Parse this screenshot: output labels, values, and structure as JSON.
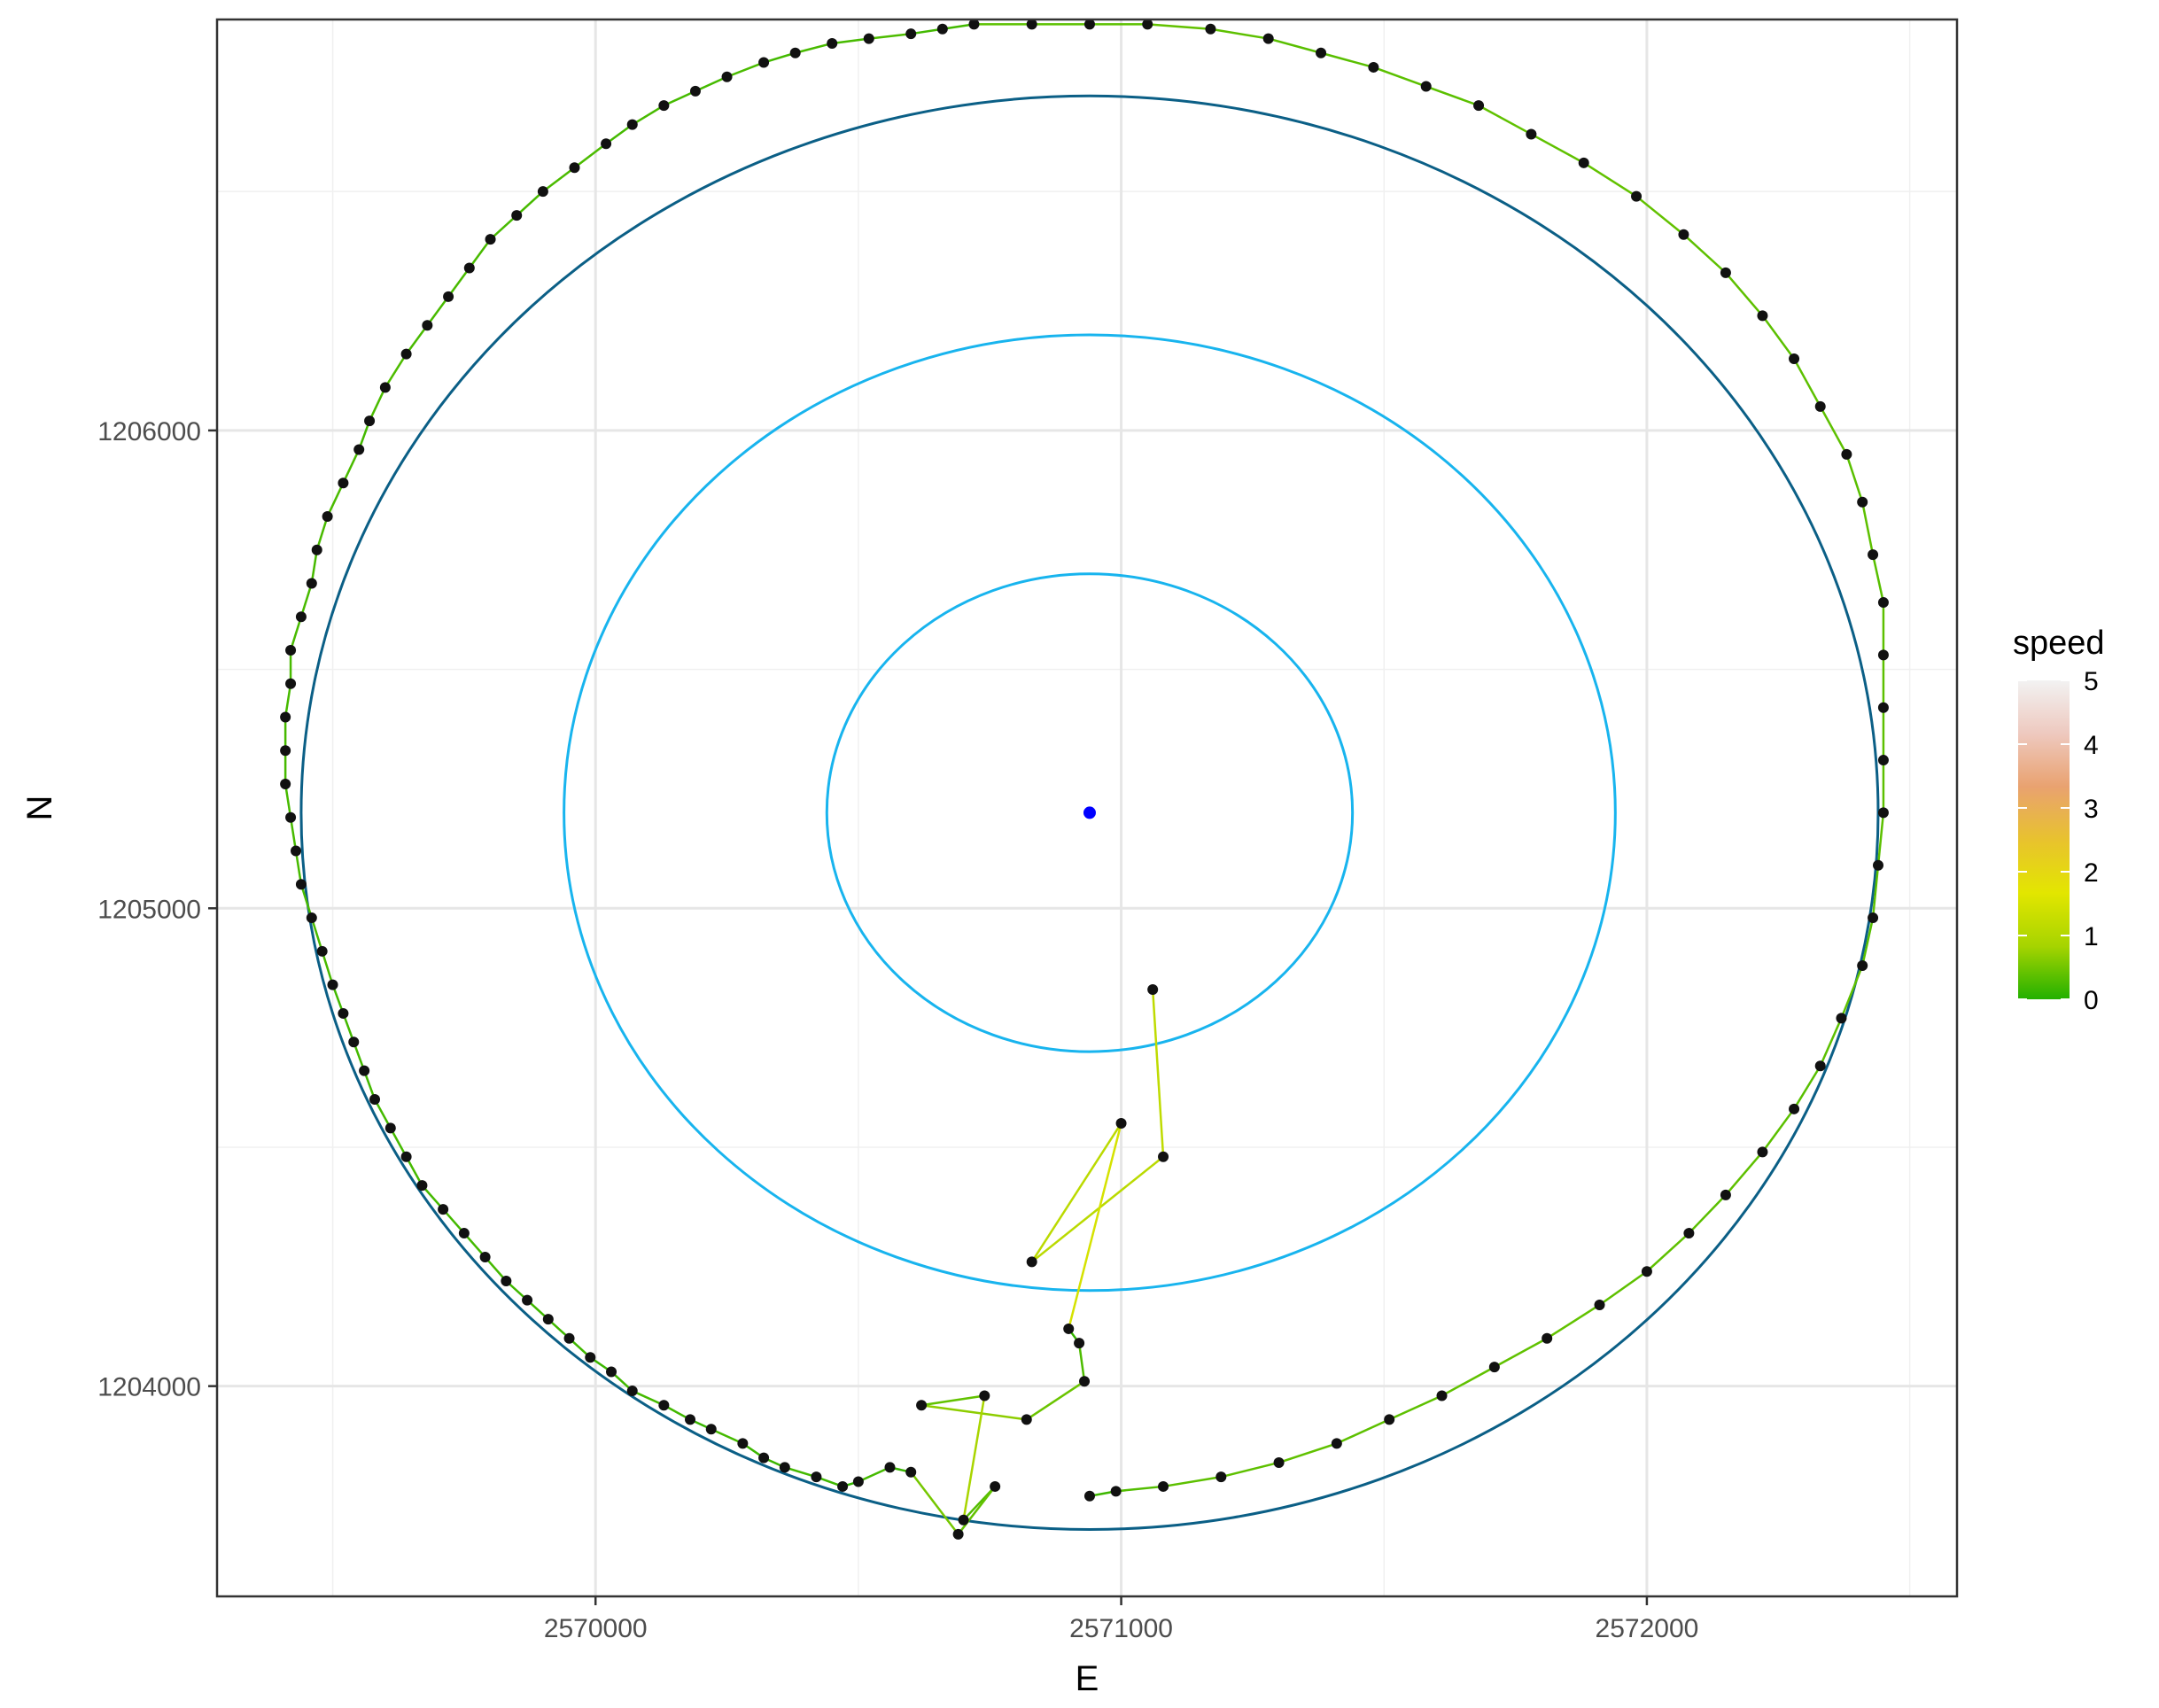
{
  "chart_data": {
    "type": "scatter",
    "title": "",
    "xlabel": "E",
    "ylabel": "N",
    "xlim": [
      2569280,
      2572590
    ],
    "ylim": [
      1203560,
      1206860
    ],
    "x_ticks": [
      2570000,
      2571000,
      2572000
    ],
    "y_ticks": [
      1204000,
      1205000,
      1206000
    ],
    "x_tick_labels": [
      "2570000",
      "2571000",
      "2572000"
    ],
    "y_tick_labels": [
      "1204000",
      "1205000",
      "1206000"
    ],
    "grid": true,
    "legend": {
      "title": "speed",
      "position": "right",
      "breaks": [
        0,
        1,
        2,
        3,
        4,
        5
      ],
      "labels": [
        "0",
        "1",
        "2",
        "3",
        "4",
        "5"
      ],
      "gradient_colors": [
        "#22b000",
        "#a6d400",
        "#e3e600",
        "#e8c22e",
        "#e9a270",
        "#eec9bf",
        "#f2f2f2"
      ]
    },
    "center": {
      "x": 2570940,
      "y": 1205200,
      "color": "#0000ff"
    },
    "rings": [
      {
        "radius": 500,
        "color": "#18b4ee"
      },
      {
        "radius": 1000,
        "color": "#18b4ee"
      },
      {
        "radius": 1500,
        "color": "#0b5f86"
      }
    ],
    "track_points": [
      [
        2571060,
        1204830
      ],
      [
        2571080,
        1204480
      ],
      [
        2570830,
        1204260
      ],
      [
        2571000,
        1204550
      ],
      [
        2570900,
        1204120
      ],
      [
        2570920,
        1204090
      ],
      [
        2570930,
        1204010
      ],
      [
        2570820,
        1203930
      ],
      [
        2570620,
        1203960
      ],
      [
        2570740,
        1203980
      ],
      [
        2570700,
        1203720
      ],
      [
        2570760,
        1203790
      ],
      [
        2570690,
        1203690
      ],
      [
        2570600,
        1203820
      ],
      [
        2570560,
        1203830
      ],
      [
        2570500,
        1203800
      ],
      [
        2570470,
        1203790
      ],
      [
        2570420,
        1203810
      ],
      [
        2570360,
        1203830
      ],
      [
        2570320,
        1203850
      ],
      [
        2570280,
        1203880
      ],
      [
        2570220,
        1203910
      ],
      [
        2570180,
        1203930
      ],
      [
        2570130,
        1203960
      ],
      [
        2570070,
        1203990
      ],
      [
        2570030,
        1204030
      ],
      [
        2569990,
        1204060
      ],
      [
        2569950,
        1204100
      ],
      [
        2569910,
        1204140
      ],
      [
        2569870,
        1204180
      ],
      [
        2569830,
        1204220
      ],
      [
        2569790,
        1204270
      ],
      [
        2569750,
        1204320
      ],
      [
        2569710,
        1204370
      ],
      [
        2569670,
        1204420
      ],
      [
        2569640,
        1204480
      ],
      [
        2569610,
        1204540
      ],
      [
        2569580,
        1204600
      ],
      [
        2569560,
        1204660
      ],
      [
        2569540,
        1204720
      ],
      [
        2569520,
        1204780
      ],
      [
        2569500,
        1204840
      ],
      [
        2569480,
        1204910
      ],
      [
        2569460,
        1204980
      ],
      [
        2569440,
        1205050
      ],
      [
        2569430,
        1205120
      ],
      [
        2569420,
        1205190
      ],
      [
        2569410,
        1205260
      ],
      [
        2569410,
        1205330
      ],
      [
        2569410,
        1205400
      ],
      [
        2569420,
        1205470
      ],
      [
        2569420,
        1205540
      ],
      [
        2569440,
        1205610
      ],
      [
        2569460,
        1205680
      ],
      [
        2569470,
        1205750
      ],
      [
        2569490,
        1205820
      ],
      [
        2569520,
        1205890
      ],
      [
        2569550,
        1205960
      ],
      [
        2569570,
        1206020
      ],
      [
        2569600,
        1206090
      ],
      [
        2569640,
        1206160
      ],
      [
        2569680,
        1206220
      ],
      [
        2569720,
        1206280
      ],
      [
        2569760,
        1206340
      ],
      [
        2569800,
        1206400
      ],
      [
        2569850,
        1206450
      ],
      [
        2569900,
        1206500
      ],
      [
        2569960,
        1206550
      ],
      [
        2570020,
        1206600
      ],
      [
        2570070,
        1206640
      ],
      [
        2570130,
        1206680
      ],
      [
        2570190,
        1206710
      ],
      [
        2570250,
        1206740
      ],
      [
        2570320,
        1206770
      ],
      [
        2570380,
        1206790
      ],
      [
        2570450,
        1206810
      ],
      [
        2570520,
        1206820
      ],
      [
        2570600,
        1206830
      ],
      [
        2570660,
        1206840
      ],
      [
        2570720,
        1206850
      ],
      [
        2570830,
        1206850
      ],
      [
        2570940,
        1206850
      ],
      [
        2571050,
        1206850
      ],
      [
        2571170,
        1206840
      ],
      [
        2571280,
        1206820
      ],
      [
        2571380,
        1206790
      ],
      [
        2571480,
        1206760
      ],
      [
        2571580,
        1206720
      ],
      [
        2571680,
        1206680
      ],
      [
        2571780,
        1206620
      ],
      [
        2571880,
        1206560
      ],
      [
        2571980,
        1206490
      ],
      [
        2572070,
        1206410
      ],
      [
        2572150,
        1206330
      ],
      [
        2572220,
        1206240
      ],
      [
        2572280,
        1206150
      ],
      [
        2572330,
        1206050
      ],
      [
        2572380,
        1205950
      ],
      [
        2572410,
        1205850
      ],
      [
        2572430,
        1205740
      ],
      [
        2572450,
        1205640
      ],
      [
        2572450,
        1205530
      ],
      [
        2572450,
        1205420
      ],
      [
        2572450,
        1205310
      ],
      [
        2572450,
        1205200
      ],
      [
        2572440,
        1205090
      ],
      [
        2572430,
        1204980
      ],
      [
        2572410,
        1204880
      ],
      [
        2572370,
        1204770
      ],
      [
        2572330,
        1204670
      ],
      [
        2572280,
        1204580
      ],
      [
        2572220,
        1204490
      ],
      [
        2572150,
        1204400
      ],
      [
        2572080,
        1204320
      ],
      [
        2572000,
        1204240
      ],
      [
        2571910,
        1204170
      ],
      [
        2571810,
        1204100
      ],
      [
        2571710,
        1204040
      ],
      [
        2571610,
        1203980
      ],
      [
        2571510,
        1203930
      ],
      [
        2571410,
        1203880
      ],
      [
        2571300,
        1203840
      ],
      [
        2571190,
        1203810
      ],
      [
        2571080,
        1203790
      ],
      [
        2570990,
        1203780
      ],
      [
        2570940,
        1203770
      ]
    ]
  }
}
